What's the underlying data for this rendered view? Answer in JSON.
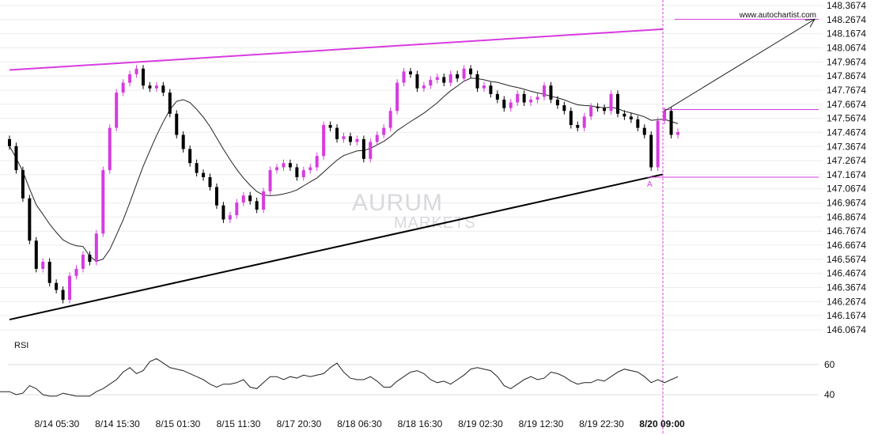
{
  "chart_data": {
    "type": "candlestick",
    "watermark": "AURUM MARKETS",
    "source_label": "www.autochartist.com",
    "colors": {
      "bullish": "#d63ce0",
      "bearish": "#000000",
      "pattern_lines": "#d63ce0",
      "support_line": "#000000",
      "moving_average": "#222222",
      "grid": "#ececec"
    },
    "y_ticks": [
      "148.3674",
      "148.2674",
      "148.1674",
      "148.0674",
      "147.9674",
      "147.8674",
      "147.7674",
      "147.6674",
      "147.5674",
      "147.4674",
      "147.3674",
      "147.2674",
      "147.1674",
      "147.0674",
      "146.9674",
      "146.8674",
      "146.7674",
      "146.6674",
      "146.5674",
      "146.4674",
      "146.3674",
      "146.2674",
      "146.1674",
      "146.0674"
    ],
    "ylim": [
      146.0674,
      148.3674
    ],
    "x_labels": [
      "8/14 05:30",
      "8/14 15:30",
      "8/15 01:30",
      "8/15 11:30",
      "8/17 20:30",
      "8/18 06:30",
      "8/18 16:30",
      "8/19 02:30",
      "8/19 12:30",
      "8/19 22:30",
      "8/20 09:00"
    ],
    "highlight_x_label": "8/20 09:00",
    "close": [
      147.37,
      147.2,
      147.0,
      146.7,
      146.5,
      146.55,
      146.4,
      146.35,
      146.28,
      146.45,
      146.5,
      146.6,
      146.55,
      146.75,
      147.2,
      147.5,
      147.75,
      147.82,
      147.88,
      147.92,
      147.8,
      147.78,
      147.8,
      147.75,
      147.6,
      147.45,
      147.35,
      147.25,
      147.18,
      147.15,
      147.08,
      146.95,
      146.85,
      146.88,
      146.97,
      147.02,
      146.98,
      146.92,
      147.05,
      147.2,
      147.22,
      147.25,
      147.22,
      147.15,
      147.2,
      147.22,
      147.3,
      147.52,
      147.5,
      147.42,
      147.44,
      147.4,
      147.42,
      147.28,
      147.4,
      147.45,
      147.5,
      147.62,
      147.82,
      147.9,
      147.88,
      147.78,
      147.8,
      147.84,
      147.86,
      147.82,
      147.88,
      147.85,
      147.92,
      147.88,
      147.78,
      147.8,
      147.74,
      147.7,
      147.64,
      147.68,
      147.74,
      147.68,
      147.7,
      147.72,
      147.8,
      147.7,
      147.66,
      147.62,
      147.52,
      147.5,
      147.58,
      147.65,
      147.64,
      147.62,
      147.74,
      147.6,
      147.58,
      147.56,
      147.5,
      147.45,
      147.22,
      147.55,
      147.62,
      147.45,
      147.47
    ],
    "pattern": {
      "type": "triangle",
      "resistance": {
        "start": 147.91,
        "end": 148.2
      },
      "support": {
        "start": 146.14,
        "end": 147.17
      },
      "point_label": "A",
      "breakout_level": 147.63,
      "point_a_level": 147.15,
      "target_level": 148.27
    },
    "rsi": {
      "label": "RSI",
      "ticks": [
        "60",
        "40"
      ],
      "ylim": [
        30,
        70
      ],
      "values": [
        42,
        40,
        41,
        46,
        44,
        40,
        39,
        39,
        41,
        40,
        39,
        39,
        39,
        42,
        44,
        47,
        50,
        55,
        58,
        54,
        56,
        62,
        64,
        61,
        58,
        57,
        56,
        54,
        52,
        50,
        47,
        45,
        47,
        47,
        48,
        50,
        45,
        44,
        48,
        52,
        52,
        50,
        52,
        51,
        53,
        52,
        53,
        54,
        58,
        61,
        55,
        51,
        50,
        50,
        52,
        49,
        45,
        45,
        49,
        52,
        55,
        56,
        54,
        50,
        48,
        49,
        47,
        50,
        53,
        57,
        58,
        57,
        56,
        52,
        46,
        44,
        47,
        50,
        52,
        50,
        51,
        55,
        54,
        52,
        49,
        47,
        48,
        48,
        50,
        49,
        52,
        55,
        57,
        56,
        55,
        52,
        48,
        50,
        48,
        50,
        52
      ]
    }
  }
}
